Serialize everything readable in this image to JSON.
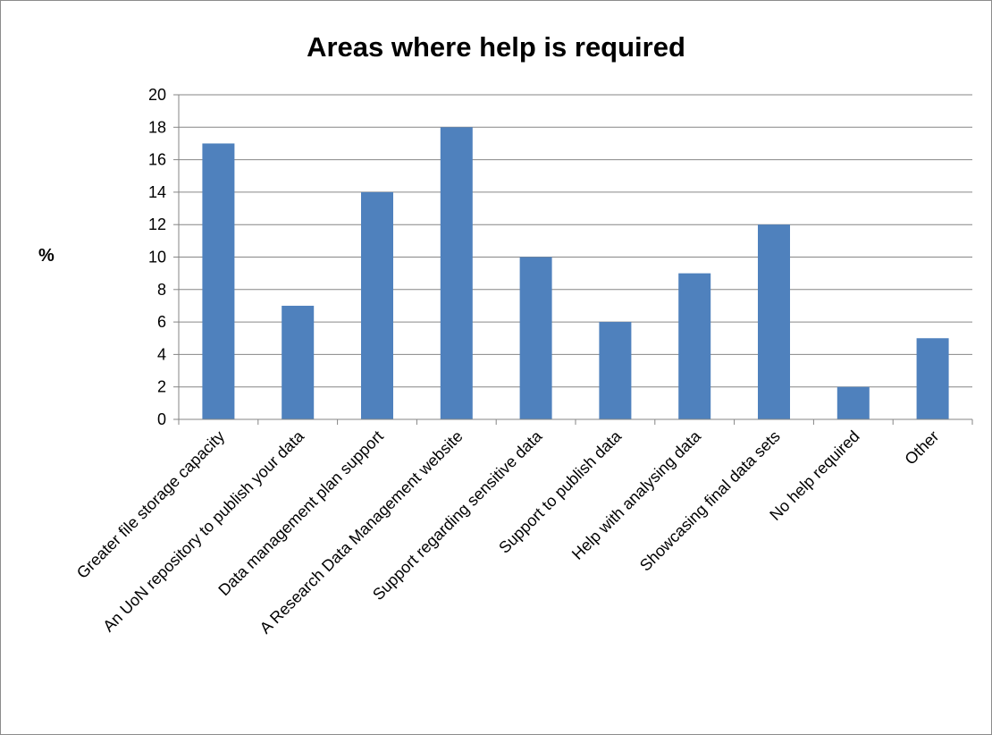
{
  "chart_data": {
    "type": "bar",
    "title": "Areas where help is required",
    "xlabel": "",
    "ylabel": "%",
    "ylim": [
      0,
      20
    ],
    "ytick_step": 2,
    "grid": true,
    "legend": "none",
    "bar_color": "#4f81bd",
    "grid_color": "#868686",
    "categories": [
      "Greater file storage capacity",
      "An UoN repository to publish your data",
      "Data management plan support",
      "A Research Data Management website",
      "Support regarding sensitive data",
      "Support to publish data",
      "Help with analysing data",
      "Showcasing final data sets",
      "No help required",
      "Other"
    ],
    "values": [
      17,
      7,
      14,
      18,
      10,
      6,
      9,
      12,
      2,
      5
    ]
  }
}
